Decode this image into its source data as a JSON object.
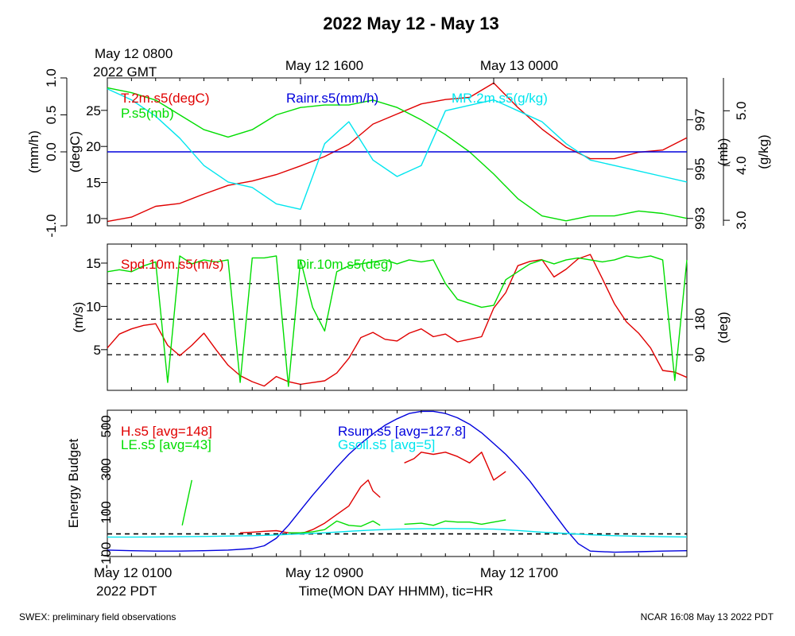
{
  "title": "2022 May 12 - May 13",
  "footer": {
    "left": "SWEX: preliminary field observations",
    "right": "NCAR 16:08 May 13 2022 PDT"
  },
  "top_axis": {
    "start_line1": "May 12 0800",
    "start_line2": "2022 GMT",
    "tick1": "May 12 1600",
    "tick2": "May 13 0000"
  },
  "bottom_axis": {
    "start_line1": "May 12 0100",
    "start_line2": "2022 PDT",
    "tick1": "May 12 0900",
    "tick2": "May 12 1700",
    "xlabel": "Time(MON DAY HHMM), tic=HR"
  },
  "colors": {
    "red": "#e00000",
    "green": "#00dd00",
    "blue": "#0000dd",
    "cyan": "#00e5ee"
  },
  "chart_data": [
    {
      "type": "line",
      "panel": "top",
      "legend_placement": "top",
      "x_range_hours_pdt": [
        0,
        24
      ],
      "axes": {
        "rain": {
          "label": "(mm/h)",
          "range": [
            -1.0,
            1.0
          ],
          "ticks": [
            "-1.0",
            "0.0",
            "0.5",
            "1.0"
          ],
          "tick_values": [
            -1.0,
            0.0,
            0.5,
            1.0
          ]
        },
        "temp": {
          "label": "(degC)",
          "range": [
            9,
            29.5
          ],
          "ticks": [
            "10",
            "15",
            "20",
            "25"
          ],
          "tick_values": [
            10,
            15,
            20,
            25
          ]
        },
        "pres": {
          "label": "(mb)",
          "range": [
            992.7,
            998.7
          ],
          "ticks": [
            "993",
            "995",
            "997"
          ],
          "tick_values": [
            993,
            995,
            997
          ]
        },
        "mr": {
          "label": "(g/kg)",
          "range": [
            2.9,
            5.6
          ],
          "ticks": [
            "3.0",
            "4.0",
            "5.0"
          ],
          "tick_values": [
            3.0,
            4.0,
            5.0
          ]
        }
      },
      "series": [
        {
          "name": "T.2m.s5(degC)",
          "axis": "temp",
          "color": "red",
          "x": [
            0,
            1,
            2,
            3,
            4,
            5,
            6,
            7,
            8,
            9,
            10,
            11,
            12,
            13,
            14,
            15,
            16,
            17,
            18,
            19,
            20,
            21,
            22,
            23,
            24
          ],
          "y": [
            9.6,
            10.2,
            11.7,
            12.1,
            13.4,
            14.6,
            15.2,
            16.1,
            17.3,
            18.6,
            20.3,
            23.1,
            24.5,
            25.9,
            26.5,
            26.8,
            28.8,
            25.4,
            22.4,
            19.9,
            18.3,
            18.3,
            19.2,
            19.5,
            21.2
          ]
        },
        {
          "name": "P.s5(mb)",
          "axis": "pres",
          "color": "green",
          "x": [
            0,
            1,
            2,
            3,
            4,
            5,
            6,
            7,
            8,
            9,
            10,
            11,
            12,
            13,
            14,
            15,
            16,
            17,
            18,
            19,
            20,
            21,
            22,
            23,
            24
          ],
          "y": [
            998.3,
            998.1,
            997.8,
            997.2,
            996.6,
            996.3,
            996.6,
            997.2,
            997.5,
            997.6,
            997.6,
            997.8,
            997.5,
            997.0,
            996.4,
            995.7,
            994.8,
            993.8,
            993.1,
            992.9,
            993.1,
            993.1,
            993.3,
            993.2,
            993.0
          ]
        },
        {
          "name": "Rainr.s5(mm/h)",
          "axis": "rain",
          "color": "blue",
          "x": [
            0,
            24
          ],
          "y": [
            0.0,
            0.0
          ]
        },
        {
          "name": "MR.2m.s5(g/kg)",
          "axis": "mr",
          "color": "cyan",
          "x": [
            0,
            1,
            2,
            3,
            4,
            5,
            6,
            7,
            8,
            9,
            10,
            11,
            12,
            13,
            14,
            15,
            16,
            17,
            18,
            19,
            20,
            21,
            22,
            23,
            24
          ],
          "y": [
            5.4,
            5.2,
            4.9,
            4.5,
            4.0,
            3.7,
            3.6,
            3.3,
            3.2,
            4.4,
            4.8,
            4.1,
            3.8,
            4.0,
            5.0,
            5.1,
            5.2,
            5.0,
            4.8,
            4.4,
            4.1,
            4.0,
            3.9,
            3.8,
            3.7
          ]
        }
      ]
    },
    {
      "type": "line",
      "panel": "middle",
      "legend_placement": "top",
      "x_range_hours_pdt": [
        0,
        24
      ],
      "axes": {
        "spd": {
          "label": "(m/s)",
          "range": [
            0.3,
            17.2
          ],
          "ticks": [
            "5",
            "10",
            "15"
          ],
          "tick_values": [
            5,
            10,
            15
          ]
        },
        "dir": {
          "label": "(deg)",
          "range": [
            0,
            370
          ],
          "ticks": [
            "90",
            "180"
          ],
          "tick_values": [
            90,
            180
          ]
        }
      },
      "reference_lines_deg": [
        90,
        180,
        270
      ],
      "series": [
        {
          "name": "Spd.10m.s5(m/s)",
          "axis": "spd",
          "color": "red",
          "x": [
            0,
            0.5,
            1,
            1.5,
            2,
            2.5,
            3,
            3.5,
            4,
            4.5,
            5,
            5.5,
            6,
            6.5,
            7,
            7.5,
            8,
            8.5,
            9,
            9.5,
            10,
            10.5,
            11,
            11.5,
            12,
            12.5,
            13,
            13.5,
            14,
            14.5,
            15,
            15.5,
            16,
            16.5,
            17,
            17.5,
            18,
            18.5,
            19,
            19.5,
            20,
            20.5,
            21,
            21.5,
            22,
            22.5,
            23,
            23.5,
            24
          ],
          "y": [
            5.2,
            6.8,
            7.4,
            7.8,
            8.0,
            5.5,
            4.3,
            5.5,
            6.9,
            5.0,
            3.2,
            2.0,
            1.3,
            0.8,
            1.9,
            1.3,
            1.0,
            1.2,
            1.4,
            2.3,
            4.0,
            6.4,
            7.0,
            6.2,
            6.0,
            6.9,
            7.4,
            6.5,
            6.8,
            5.9,
            6.2,
            6.5,
            9.8,
            11.6,
            14.7,
            15.2,
            15.4,
            13.4,
            14.3,
            15.5,
            16.0,
            13.2,
            10.3,
            8.2,
            6.9,
            5.2,
            2.6,
            2.4,
            1.8
          ]
        },
        {
          "name": "Dir.10m.s5(deg)",
          "axis": "dir",
          "color": "green",
          "x": [
            0,
            0.5,
            1,
            1.5,
            2,
            2.5,
            3,
            3.5,
            4,
            4.5,
            5,
            5.5,
            6,
            6.5,
            7,
            7.5,
            8,
            8.5,
            9,
            9.5,
            10,
            10.5,
            11,
            11.5,
            12,
            12.5,
            13,
            13.5,
            14,
            14.5,
            15,
            15.5,
            16,
            16.5,
            17,
            17.5,
            18,
            18.5,
            19,
            19.5,
            20,
            20.5,
            21,
            21.5,
            22,
            22.5,
            23,
            23.5,
            24
          ],
          "y": [
            300,
            305,
            300,
            315,
            325,
            20,
            340,
            320,
            330,
            325,
            330,
            20,
            335,
            335,
            340,
            10,
            330,
            210,
            150,
            300,
            315,
            320,
            325,
            330,
            320,
            330,
            325,
            330,
            270,
            230,
            220,
            210,
            215,
            280,
            300,
            320,
            330,
            320,
            330,
            335,
            330,
            325,
            330,
            340,
            335,
            340,
            330,
            25,
            330
          ]
        }
      ]
    },
    {
      "type": "line",
      "panel": "bottom",
      "legend_placement": "top",
      "x_range_hours_pdt": [
        0,
        24
      ],
      "axes": {
        "energy": {
          "label": "Energy Budget",
          "range": [
            -105,
            575
          ],
          "ticks": [
            "-100",
            "100",
            "300",
            "500"
          ],
          "tick_values": [
            -100,
            100,
            300,
            500
          ]
        }
      },
      "reference_lines": [
        0
      ],
      "series": [
        {
          "name": "H.s5 [avg=148]",
          "axis": "energy",
          "color": "red",
          "segments": [
            {
              "x": [
                5.5,
                6.0,
                6.5,
                7.0,
                7.5,
                8.0,
                8.5,
                9.0,
                9.5,
                10.0,
                10.5,
                10.8,
                11.0,
                11.3
              ],
              "y": [
                5,
                8,
                12,
                15,
                5,
                0,
                20,
                50,
                90,
                130,
                220,
                250,
                200,
                170
              ]
            },
            {
              "x": [
                12.3,
                12.7,
                13.0,
                13.5,
                14.0,
                14.5,
                15.0,
                15.5,
                16.0,
                16.5
              ],
              "y": [
                330,
                350,
                380,
                370,
                380,
                360,
                330,
                380,
                250,
                290
              ]
            }
          ]
        },
        {
          "name": "LE.s5 [avg=43]",
          "axis": "energy",
          "color": "green",
          "segments": [
            {
              "x": [
                3.1,
                3.5
              ],
              "y": [
                40,
                250
              ]
            },
            {
              "x": [
                7.5,
                8.0,
                8.5,
                9.0,
                9.5,
                10.0,
                10.5,
                11.0,
                11.3
              ],
              "y": [
                5,
                5,
                10,
                20,
                60,
                40,
                35,
                60,
                40
              ]
            },
            {
              "x": [
                12.3,
                13.0,
                13.5,
                14.0,
                14.5,
                15.0,
                15.5,
                16.0,
                16.5
              ],
              "y": [
                45,
                50,
                40,
                60,
                55,
                55,
                45,
                55,
                65
              ]
            }
          ]
        },
        {
          "name": "Rsum.s5 [avg=127.8]",
          "axis": "energy",
          "color": "blue",
          "x": [
            0,
            1,
            2,
            3,
            4,
            5,
            6,
            6.5,
            7,
            7.5,
            8,
            8.5,
            9,
            9.5,
            10,
            10.5,
            11,
            11.5,
            12,
            12.5,
            13,
            13.5,
            14,
            14.5,
            15,
            15.5,
            16,
            16.5,
            17,
            17.5,
            18,
            18.5,
            19,
            19.5,
            20,
            21,
            22,
            23,
            24
          ],
          "y": [
            -75,
            -78,
            -80,
            -80,
            -78,
            -75,
            -68,
            -55,
            -20,
            40,
            110,
            180,
            245,
            310,
            370,
            420,
            465,
            505,
            535,
            560,
            570,
            570,
            560,
            540,
            510,
            470,
            420,
            370,
            310,
            245,
            170,
            95,
            20,
            -45,
            -80,
            -85,
            -83,
            -80,
            -78
          ]
        },
        {
          "name": "Gsoil.s5 [avg=5]",
          "axis": "energy",
          "color": "cyan",
          "x": [
            0,
            1,
            2,
            3,
            4,
            5,
            6,
            7,
            8,
            9,
            10,
            11,
            12,
            13,
            14,
            15,
            16,
            17,
            18,
            19,
            20,
            21,
            22,
            23,
            24
          ],
          "y": [
            -15,
            -15,
            -14,
            -13,
            -12,
            -10,
            -8,
            -5,
            0,
            5,
            12,
            18,
            22,
            24,
            25,
            24,
            22,
            16,
            8,
            2,
            -4,
            -8,
            -11,
            -13,
            -14
          ]
        }
      ]
    }
  ]
}
